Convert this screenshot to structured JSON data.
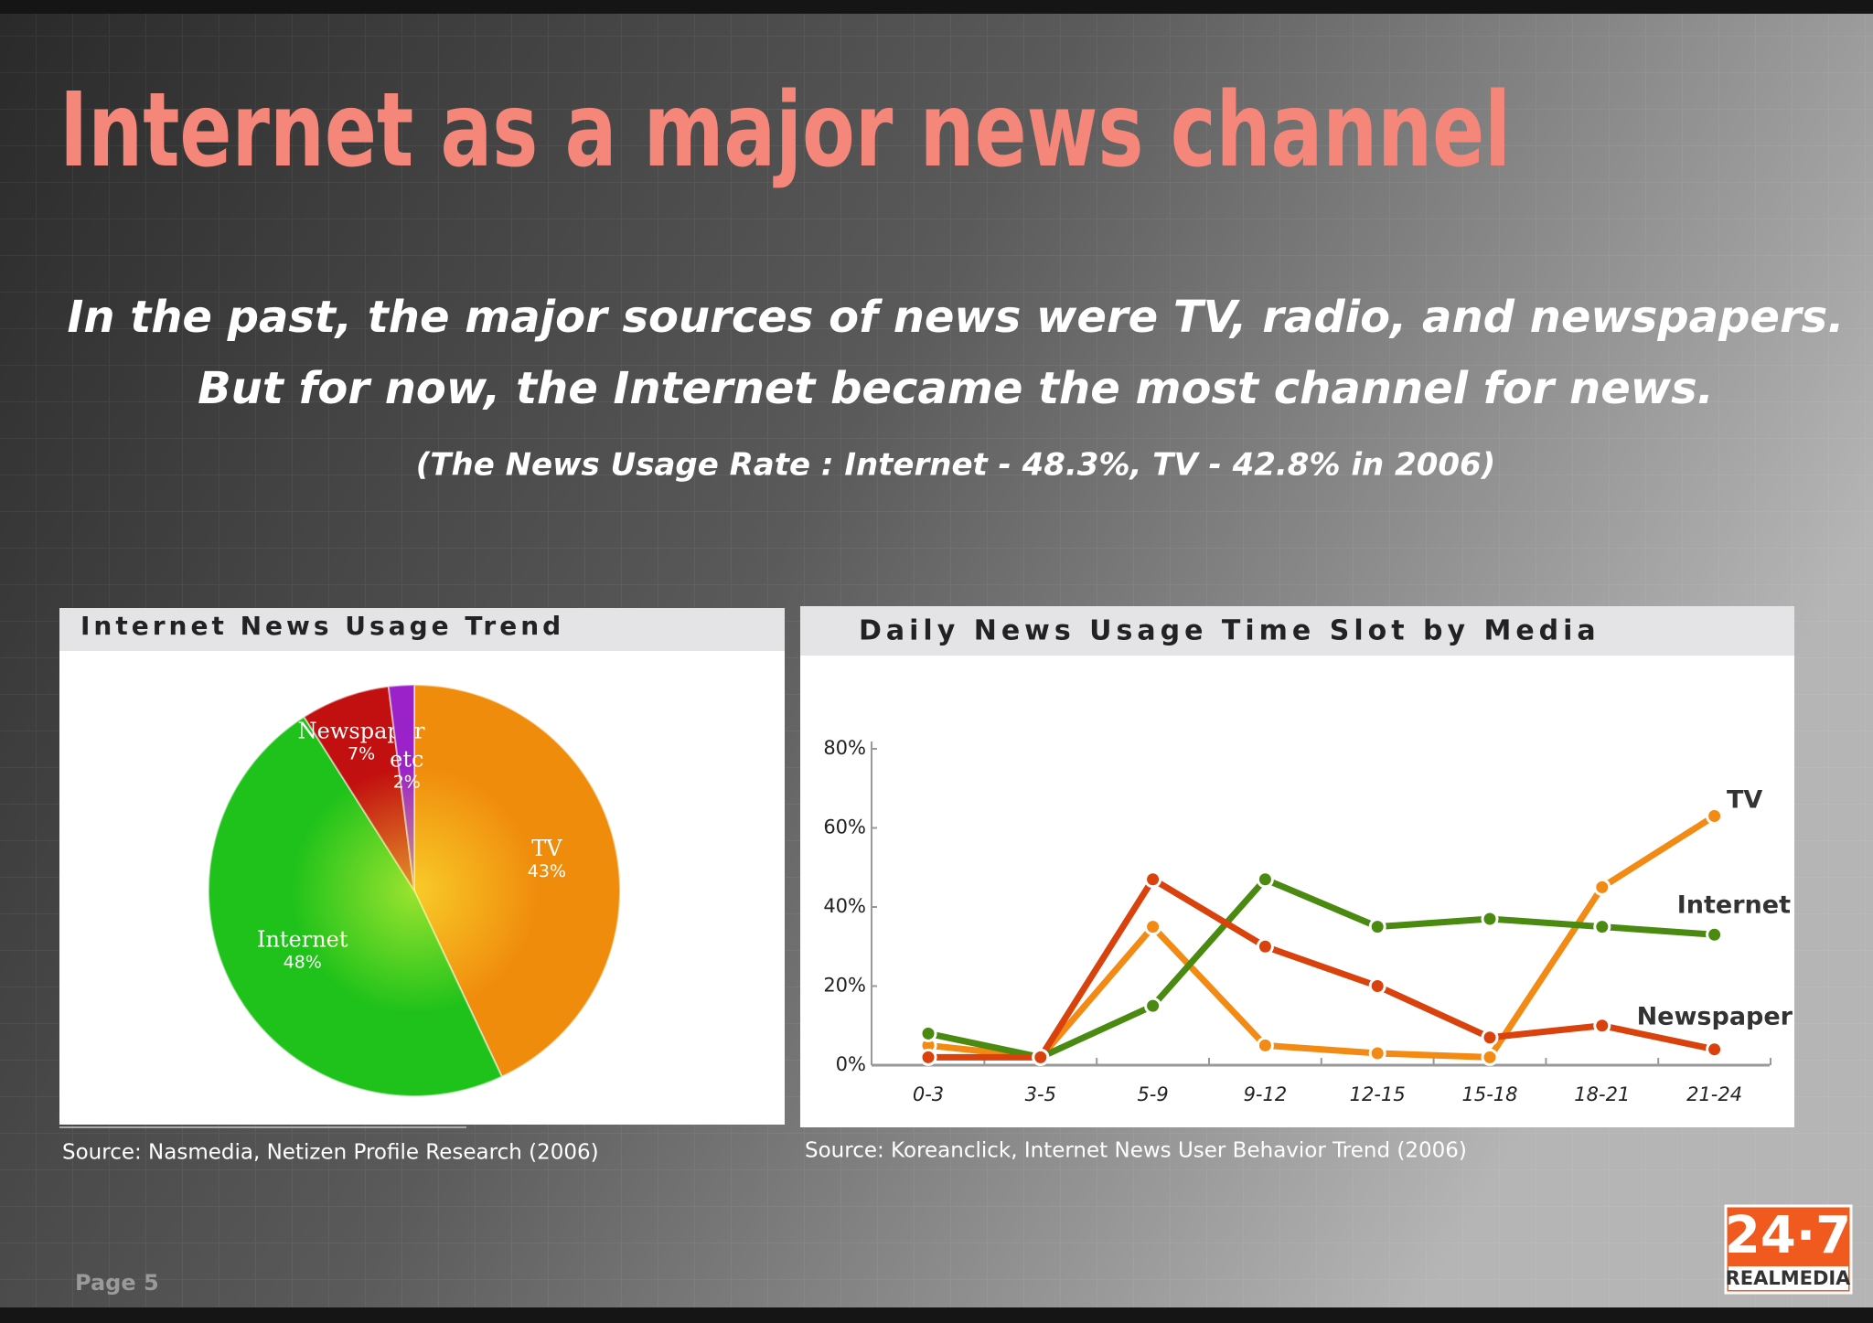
{
  "title": "Internet as a major news channel",
  "subtitle": [
    "In the past, the major sources of news were TV, radio, and newspapers.",
    "But for now, the Internet became the most channel for news.",
    "(The News Usage Rate : Internet - 48.3%, TV - 42.8% in 2006)"
  ],
  "page": "Page 5",
  "logo": {
    "top": "24·7",
    "bottom": "REALMEDIA"
  },
  "chart_data": [
    {
      "type": "pie",
      "title": "Internet News Usage Trend",
      "categories": [
        "TV",
        "Internet",
        "Newspaper",
        "etc"
      ],
      "values": [
        43,
        48,
        7,
        2
      ],
      "value_labels": [
        "43%",
        "48%",
        "7%",
        "2%"
      ],
      "colors": [
        "#f08c0c",
        "#1fc21a",
        "#c20f0f",
        "#9a22c8"
      ],
      "source": "Source: Nasmedia, Netizen Profile Research (2006)"
    },
    {
      "type": "line",
      "title": "Daily News Usage Time Slot by Media",
      "categories": [
        "0-3",
        "3-5",
        "5-9",
        "9-12",
        "12-15",
        "15-18",
        "18-21",
        "21-24"
      ],
      "series": [
        {
          "name": "TV",
          "color": "#f28a13",
          "values": [
            5,
            2,
            35,
            5,
            3,
            2,
            45,
            63
          ]
        },
        {
          "name": "Internet",
          "color": "#4a8a10",
          "values": [
            8,
            2,
            15,
            47,
            35,
            37,
            35,
            33
          ]
        },
        {
          "name": "Newspaper",
          "color": "#d9420c",
          "values": [
            2,
            2,
            47,
            30,
            20,
            7,
            10,
            4
          ]
        }
      ],
      "ylim": [
        0,
        80
      ],
      "yticks": [
        {
          "value": 0,
          "label": "0%"
        },
        {
          "value": 20,
          "label": "20%"
        },
        {
          "value": 40,
          "label": "40%"
        },
        {
          "value": 60,
          "label": "60%"
        },
        {
          "value": 80,
          "label": "80%"
        }
      ],
      "source": "Source: Koreanclick, Internet News User Behavior Trend (2006)"
    }
  ]
}
